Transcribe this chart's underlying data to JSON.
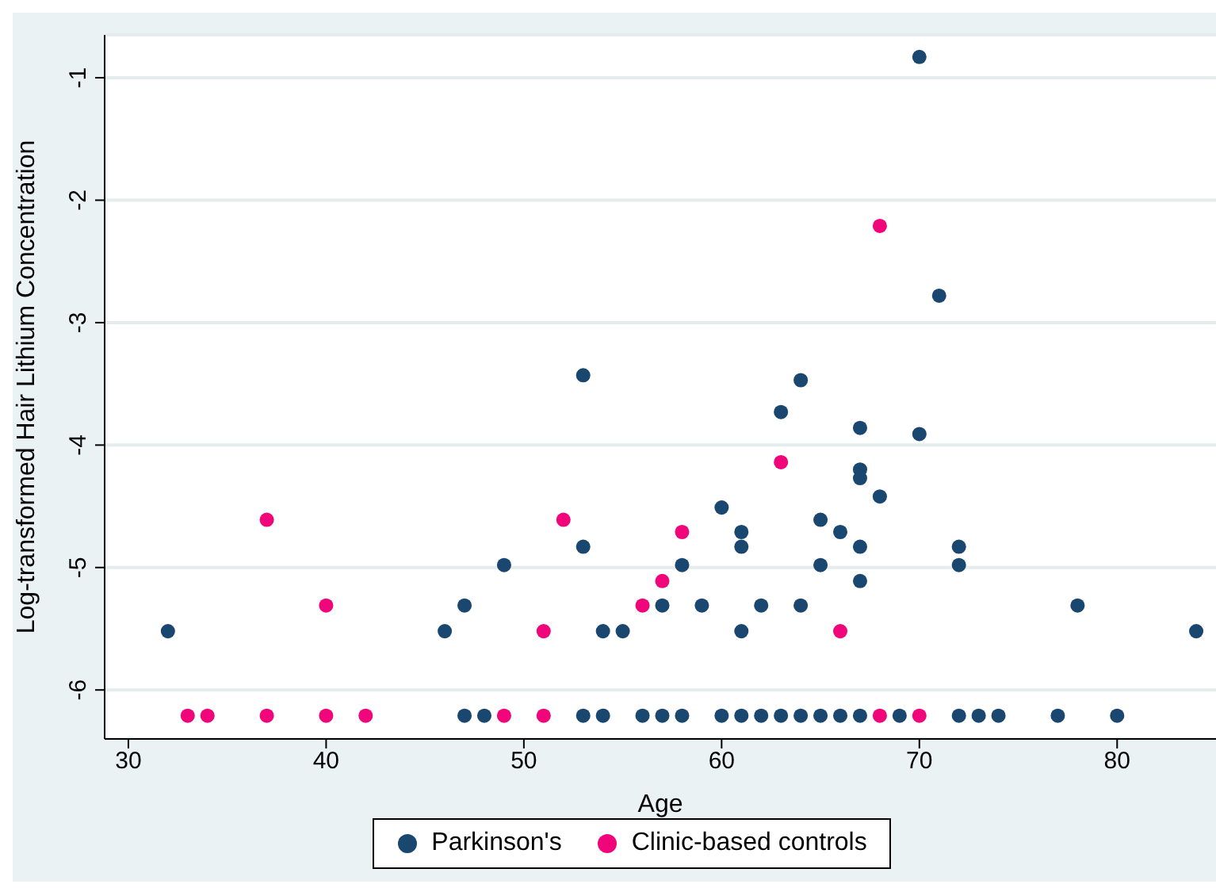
{
  "chart_data": {
    "type": "scatter",
    "xlabel": "Age",
    "ylabel": "Log-transformed Hair Lithium Concentration",
    "xlim": [
      28.8,
      85
    ],
    "xticks": [
      30,
      40,
      50,
      60,
      70,
      80
    ],
    "ylim": [
      -6.4,
      -0.65
    ],
    "yticks": [
      -6,
      -5,
      -4,
      -3,
      -2,
      -1
    ],
    "grid": "y",
    "legend": "bottom",
    "marker": "circle",
    "series": [
      {
        "name": "Parkinson's",
        "color": "#1a476f",
        "x": [
          32,
          46,
          47,
          47,
          48,
          49,
          53,
          53,
          53,
          54,
          54,
          55,
          56,
          57,
          57,
          58,
          58,
          59,
          60,
          60,
          61,
          61,
          61,
          61,
          62,
          62,
          63,
          63,
          64,
          64,
          64,
          65,
          65,
          65,
          66,
          66,
          67,
          67,
          67,
          67,
          67,
          67,
          68,
          69,
          70,
          70,
          71,
          72,
          72,
          72,
          73,
          74,
          77,
          78,
          80,
          84
        ],
        "values": [
          -5.52,
          -5.52,
          -5.31,
          -6.21,
          -6.21,
          -4.98,
          -3.43,
          -4.83,
          -6.21,
          -5.52,
          -6.21,
          -5.52,
          -6.21,
          -5.31,
          -6.21,
          -4.98,
          -6.21,
          -5.31,
          -4.51,
          -6.21,
          -4.71,
          -4.83,
          -5.52,
          -6.21,
          -5.31,
          -6.21,
          -3.73,
          -6.21,
          -3.47,
          -5.31,
          -6.21,
          -4.61,
          -4.98,
          -6.21,
          -4.71,
          -6.21,
          -3.86,
          -4.2,
          -4.27,
          -4.83,
          -5.11,
          -6.21,
          -4.42,
          -6.21,
          -0.83,
          -3.91,
          -2.78,
          -4.83,
          -4.98,
          -6.21,
          -6.21,
          -6.21,
          -6.21,
          -5.31,
          -6.21,
          -5.52
        ]
      },
      {
        "name": "Clinic-based controls",
        "color": "#f0057a",
        "x": [
          33,
          34,
          37,
          37,
          40,
          40,
          42,
          49,
          51,
          51,
          52,
          56,
          57,
          58,
          63,
          66,
          68,
          68,
          70
        ],
        "values": [
          -6.21,
          -6.21,
          -4.61,
          -6.21,
          -5.31,
          -6.21,
          -6.21,
          -6.21,
          -5.52,
          -6.21,
          -4.61,
          -5.31,
          -5.11,
          -4.71,
          -4.14,
          -5.52,
          -2.21,
          -6.21,
          -6.21
        ]
      }
    ]
  }
}
